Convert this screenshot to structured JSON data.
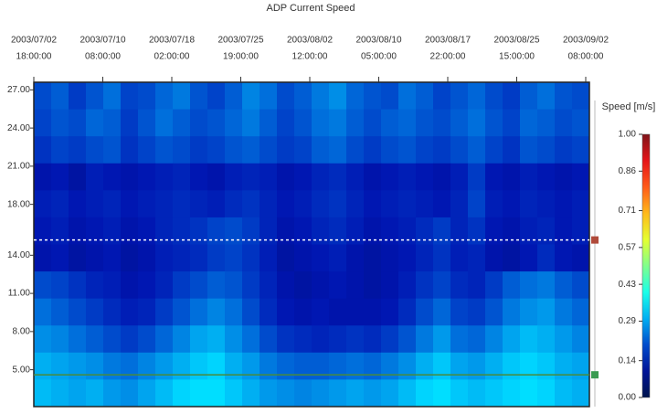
{
  "chart_data": {
    "type": "heatmap",
    "title": "ADP Current Speed",
    "x_ticks": [
      {
        "date": "2003/07/02",
        "time": "18:00:00"
      },
      {
        "date": "2003/07/10",
        "time": "08:00:00"
      },
      {
        "date": "2003/07/18",
        "time": "02:00:00"
      },
      {
        "date": "2003/07/25",
        "time": "19:00:00"
      },
      {
        "date": "2003/08/02",
        "time": "12:00:00"
      },
      {
        "date": "2003/08/10",
        "time": "05:00:00"
      },
      {
        "date": "2003/08/17",
        "time": "22:00:00"
      },
      {
        "date": "2003/08/25",
        "time": "15:00:00"
      },
      {
        "date": "2003/09/02",
        "time": "08:00:00"
      }
    ],
    "ylim": [
      2.1,
      27.6
    ],
    "yticks": [
      {
        "value": 27,
        "label": "27.00"
      },
      {
        "value": 24,
        "label": "24.00"
      },
      {
        "value": 21,
        "label": "21.00"
      },
      {
        "value": 18,
        "label": "18.00"
      },
      {
        "value": 14,
        "label": "14.00"
      },
      {
        "value": 11,
        "label": "11.00"
      },
      {
        "value": 8,
        "label": "8.00"
      },
      {
        "value": 5,
        "label": "5.00"
      }
    ],
    "colorbar_title": "Speed [m/s]",
    "clim": [
      0,
      1
    ],
    "colorbar_ticks": [
      {
        "value": 1,
        "label": "1.00"
      },
      {
        "value": 0.86,
        "label": "0.86"
      },
      {
        "value": 0.71,
        "label": "0.71"
      },
      {
        "value": 0.57,
        "label": "0.57"
      },
      {
        "value": 0.43,
        "label": "0.43"
      },
      {
        "value": 0.29,
        "label": "0.29"
      },
      {
        "value": 0.14,
        "label": "0.14"
      },
      {
        "value": 0,
        "label": "0.00"
      }
    ],
    "reference_lines": [
      {
        "value": 15.2,
        "color": "#ffffff",
        "marker_color": "#b04a3a"
      },
      {
        "value": 4.6,
        "color": "#4a8a3a",
        "marker_color": "#3a9a50"
      }
    ],
    "z": [
      [
        0.2,
        0.22,
        0.18,
        0.21,
        0.24,
        0.19,
        0.2,
        0.23,
        0.25,
        0.21,
        0.19,
        0.22,
        0.26,
        0.24,
        0.2,
        0.22,
        0.25,
        0.27,
        0.23,
        0.21,
        0.2,
        0.24,
        0.22,
        0.19,
        0.21,
        0.23,
        0.2,
        0.18,
        0.22,
        0.24,
        0.21,
        0.2
      ],
      [
        0.19,
        0.21,
        0.2,
        0.23,
        0.22,
        0.18,
        0.21,
        0.24,
        0.22,
        0.2,
        0.21,
        0.23,
        0.25,
        0.22,
        0.19,
        0.21,
        0.24,
        0.25,
        0.22,
        0.2,
        0.22,
        0.23,
        0.21,
        0.2,
        0.22,
        0.24,
        0.21,
        0.19,
        0.23,
        0.22,
        0.2,
        0.21
      ],
      [
        0.17,
        0.19,
        0.18,
        0.2,
        0.21,
        0.17,
        0.19,
        0.21,
        0.2,
        0.18,
        0.19,
        0.21,
        0.22,
        0.2,
        0.18,
        0.19,
        0.22,
        0.23,
        0.2,
        0.18,
        0.2,
        0.21,
        0.19,
        0.18,
        0.2,
        0.22,
        0.19,
        0.17,
        0.21,
        0.2,
        0.18,
        0.19
      ],
      [
        0.12,
        0.13,
        0.11,
        0.14,
        0.13,
        0.12,
        0.13,
        0.14,
        0.15,
        0.13,
        0.12,
        0.14,
        0.15,
        0.14,
        0.12,
        0.13,
        0.15,
        0.16,
        0.14,
        0.12,
        0.13,
        0.14,
        0.13,
        0.12,
        0.14,
        0.18,
        0.13,
        0.12,
        0.14,
        0.13,
        0.12,
        0.13
      ],
      [
        0.14,
        0.15,
        0.13,
        0.14,
        0.15,
        0.13,
        0.14,
        0.15,
        0.16,
        0.15,
        0.14,
        0.16,
        0.17,
        0.15,
        0.13,
        0.14,
        0.16,
        0.17,
        0.15,
        0.13,
        0.14,
        0.15,
        0.14,
        0.13,
        0.15,
        0.19,
        0.14,
        0.13,
        0.15,
        0.14,
        0.13,
        0.14
      ],
      [
        0.13,
        0.14,
        0.12,
        0.13,
        0.14,
        0.12,
        0.13,
        0.15,
        0.16,
        0.17,
        0.19,
        0.2,
        0.18,
        0.15,
        0.12,
        0.13,
        0.15,
        0.16,
        0.14,
        0.12,
        0.13,
        0.14,
        0.16,
        0.18,
        0.15,
        0.17,
        0.13,
        0.12,
        0.14,
        0.15,
        0.13,
        0.14
      ],
      [
        0.12,
        0.13,
        0.11,
        0.12,
        0.13,
        0.11,
        0.12,
        0.14,
        0.15,
        0.16,
        0.18,
        0.19,
        0.17,
        0.14,
        0.11,
        0.12,
        0.13,
        0.14,
        0.12,
        0.11,
        0.12,
        0.13,
        0.15,
        0.17,
        0.14,
        0.15,
        0.12,
        0.11,
        0.13,
        0.16,
        0.13,
        0.12
      ],
      [
        0.2,
        0.19,
        0.17,
        0.15,
        0.14,
        0.12,
        0.13,
        0.15,
        0.18,
        0.2,
        0.22,
        0.21,
        0.18,
        0.15,
        0.12,
        0.11,
        0.12,
        0.13,
        0.12,
        0.11,
        0.12,
        0.14,
        0.17,
        0.19,
        0.16,
        0.15,
        0.18,
        0.22,
        0.24,
        0.25,
        0.22,
        0.2
      ],
      [
        0.24,
        0.22,
        0.2,
        0.18,
        0.16,
        0.14,
        0.15,
        0.18,
        0.21,
        0.24,
        0.26,
        0.24,
        0.2,
        0.16,
        0.13,
        0.12,
        0.13,
        0.12,
        0.12,
        0.12,
        0.13,
        0.16,
        0.2,
        0.23,
        0.19,
        0.18,
        0.21,
        0.25,
        0.27,
        0.28,
        0.25,
        0.23
      ],
      [
        0.27,
        0.26,
        0.24,
        0.22,
        0.2,
        0.18,
        0.2,
        0.23,
        0.26,
        0.29,
        0.3,
        0.27,
        0.24,
        0.2,
        0.17,
        0.16,
        0.15,
        0.16,
        0.17,
        0.16,
        0.18,
        0.21,
        0.25,
        0.28,
        0.24,
        0.23,
        0.26,
        0.29,
        0.31,
        0.3,
        0.28,
        0.26
      ],
      [
        0.3,
        0.29,
        0.28,
        0.27,
        0.25,
        0.24,
        0.26,
        0.28,
        0.3,
        0.32,
        0.33,
        0.3,
        0.28,
        0.25,
        0.23,
        0.22,
        0.22,
        0.23,
        0.24,
        0.23,
        0.25,
        0.27,
        0.3,
        0.32,
        0.29,
        0.28,
        0.3,
        0.32,
        0.33,
        0.32,
        0.3,
        0.29
      ],
      [
        0.31,
        0.3,
        0.29,
        0.3,
        0.28,
        0.27,
        0.29,
        0.31,
        0.33,
        0.34,
        0.34,
        0.32,
        0.3,
        0.28,
        0.27,
        0.26,
        0.27,
        0.28,
        0.29,
        0.28,
        0.29,
        0.31,
        0.33,
        0.34,
        0.32,
        0.31,
        0.32,
        0.33,
        0.34,
        0.33,
        0.31,
        0.3
      ]
    ]
  }
}
